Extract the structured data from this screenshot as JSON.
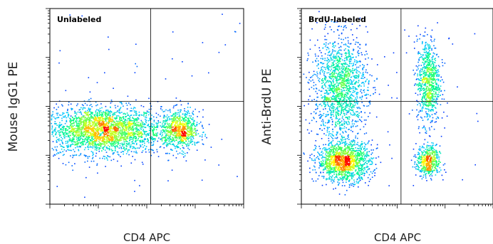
{
  "chart_data": [
    {
      "type": "scatter",
      "title": "Unlabeled",
      "xlabel": "CD4 APC",
      "ylabel": "Mouse IgG1 PE",
      "x_scale": "log",
      "y_scale": "log",
      "quadrant_gates": true,
      "colormap": [
        "#0000ff",
        "#00c8ff",
        "#00ff7f",
        "#ffff00",
        "#ff0000"
      ],
      "clusters": [
        {
          "x": 0.27,
          "y": 0.38,
          "sx": 0.15,
          "sy": 0.06,
          "n": 2600
        },
        {
          "x": 0.67,
          "y": 0.38,
          "sx": 0.05,
          "sy": 0.05,
          "n": 800
        }
      ]
    },
    {
      "type": "scatter",
      "title": "BrdU-labeled",
      "xlabel": "CD4 APC",
      "ylabel": "Anti-BrdU PE",
      "x_scale": "log",
      "y_scale": "log",
      "quadrant_gates": true,
      "colormap": [
        "#0000ff",
        "#00c8ff",
        "#00ff7f",
        "#ffff00",
        "#ff0000"
      ],
      "clusters": [
        {
          "x": 0.22,
          "y": 0.22,
          "sx": 0.07,
          "sy": 0.05,
          "n": 1400
        },
        {
          "x": 0.2,
          "y": 0.6,
          "sx": 0.07,
          "sy": 0.13,
          "n": 1500
        },
        {
          "x": 0.66,
          "y": 0.22,
          "sx": 0.03,
          "sy": 0.04,
          "n": 500
        },
        {
          "x": 0.66,
          "y": 0.63,
          "sx": 0.03,
          "sy": 0.11,
          "n": 800
        }
      ]
    }
  ]
}
